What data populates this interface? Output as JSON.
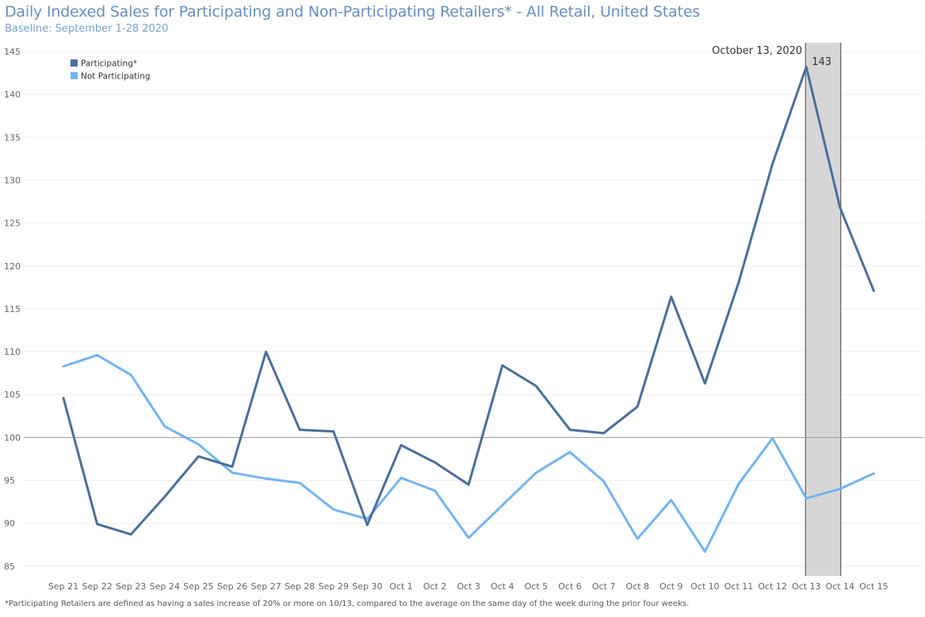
{
  "chart_data": {
    "type": "line",
    "title": "Daily Indexed Sales for Participating and Non-Participating Retailers* - All Retail, United States",
    "subtitle": "Baseline: September 1-28 2020",
    "xlabel": "",
    "ylabel": "",
    "categories": [
      "Sep 21",
      "Sep 22",
      "Sep 23",
      "Sep 24",
      "Sep 25",
      "Sep 26",
      "Sep 27",
      "Sep 28",
      "Sep 29",
      "Sep 30",
      "Oct 1",
      "Oct 2",
      "Oct 3",
      "Oct 4",
      "Oct 5",
      "Oct 6",
      "Oct 7",
      "Oct 8",
      "Oct 9",
      "Oct 10",
      "Oct 11",
      "Oct 12",
      "Oct 13",
      "Oct 14",
      "Oct 15"
    ],
    "ylim": [
      84,
      145
    ],
    "yticks": [
      85,
      90,
      95,
      100,
      105,
      110,
      115,
      120,
      125,
      130,
      135,
      140,
      145
    ],
    "reference_line": 100,
    "highlight_band": [
      "Oct 13",
      "Oct 14"
    ],
    "series": [
      {
        "name": "Participating*",
        "color": "#4a6f9b",
        "values": [
          104.6,
          89.9,
          88.7,
          93.1,
          97.8,
          96.6,
          110.0,
          100.9,
          100.7,
          89.8,
          99.1,
          97.1,
          94.5,
          108.4,
          106.0,
          100.9,
          100.5,
          103.6,
          116.4,
          106.3,
          118.1,
          131.9,
          143.2,
          126.8,
          117.1
        ]
      },
      {
        "name": "Not Participating",
        "color": "#74b3f0",
        "values": [
          108.3,
          109.6,
          107.3,
          101.3,
          99.2,
          95.9,
          95.2,
          94.7,
          91.6,
          90.5,
          95.3,
          93.8,
          88.3,
          92.1,
          95.9,
          98.3,
          94.9,
          88.2,
          92.7,
          86.7,
          94.6,
          99.9,
          92.9,
          94.0,
          95.8
        ]
      }
    ],
    "annotations": [
      {
        "text": "October 13, 2020"
      },
      {
        "text": "143"
      }
    ],
    "legend_position": "top-left",
    "grid": true
  },
  "footnote": "*Participating Retailers are defined as having a sales increase of 20% or more on 10/13, compared to the average on the same day of the week during the prior four weeks."
}
